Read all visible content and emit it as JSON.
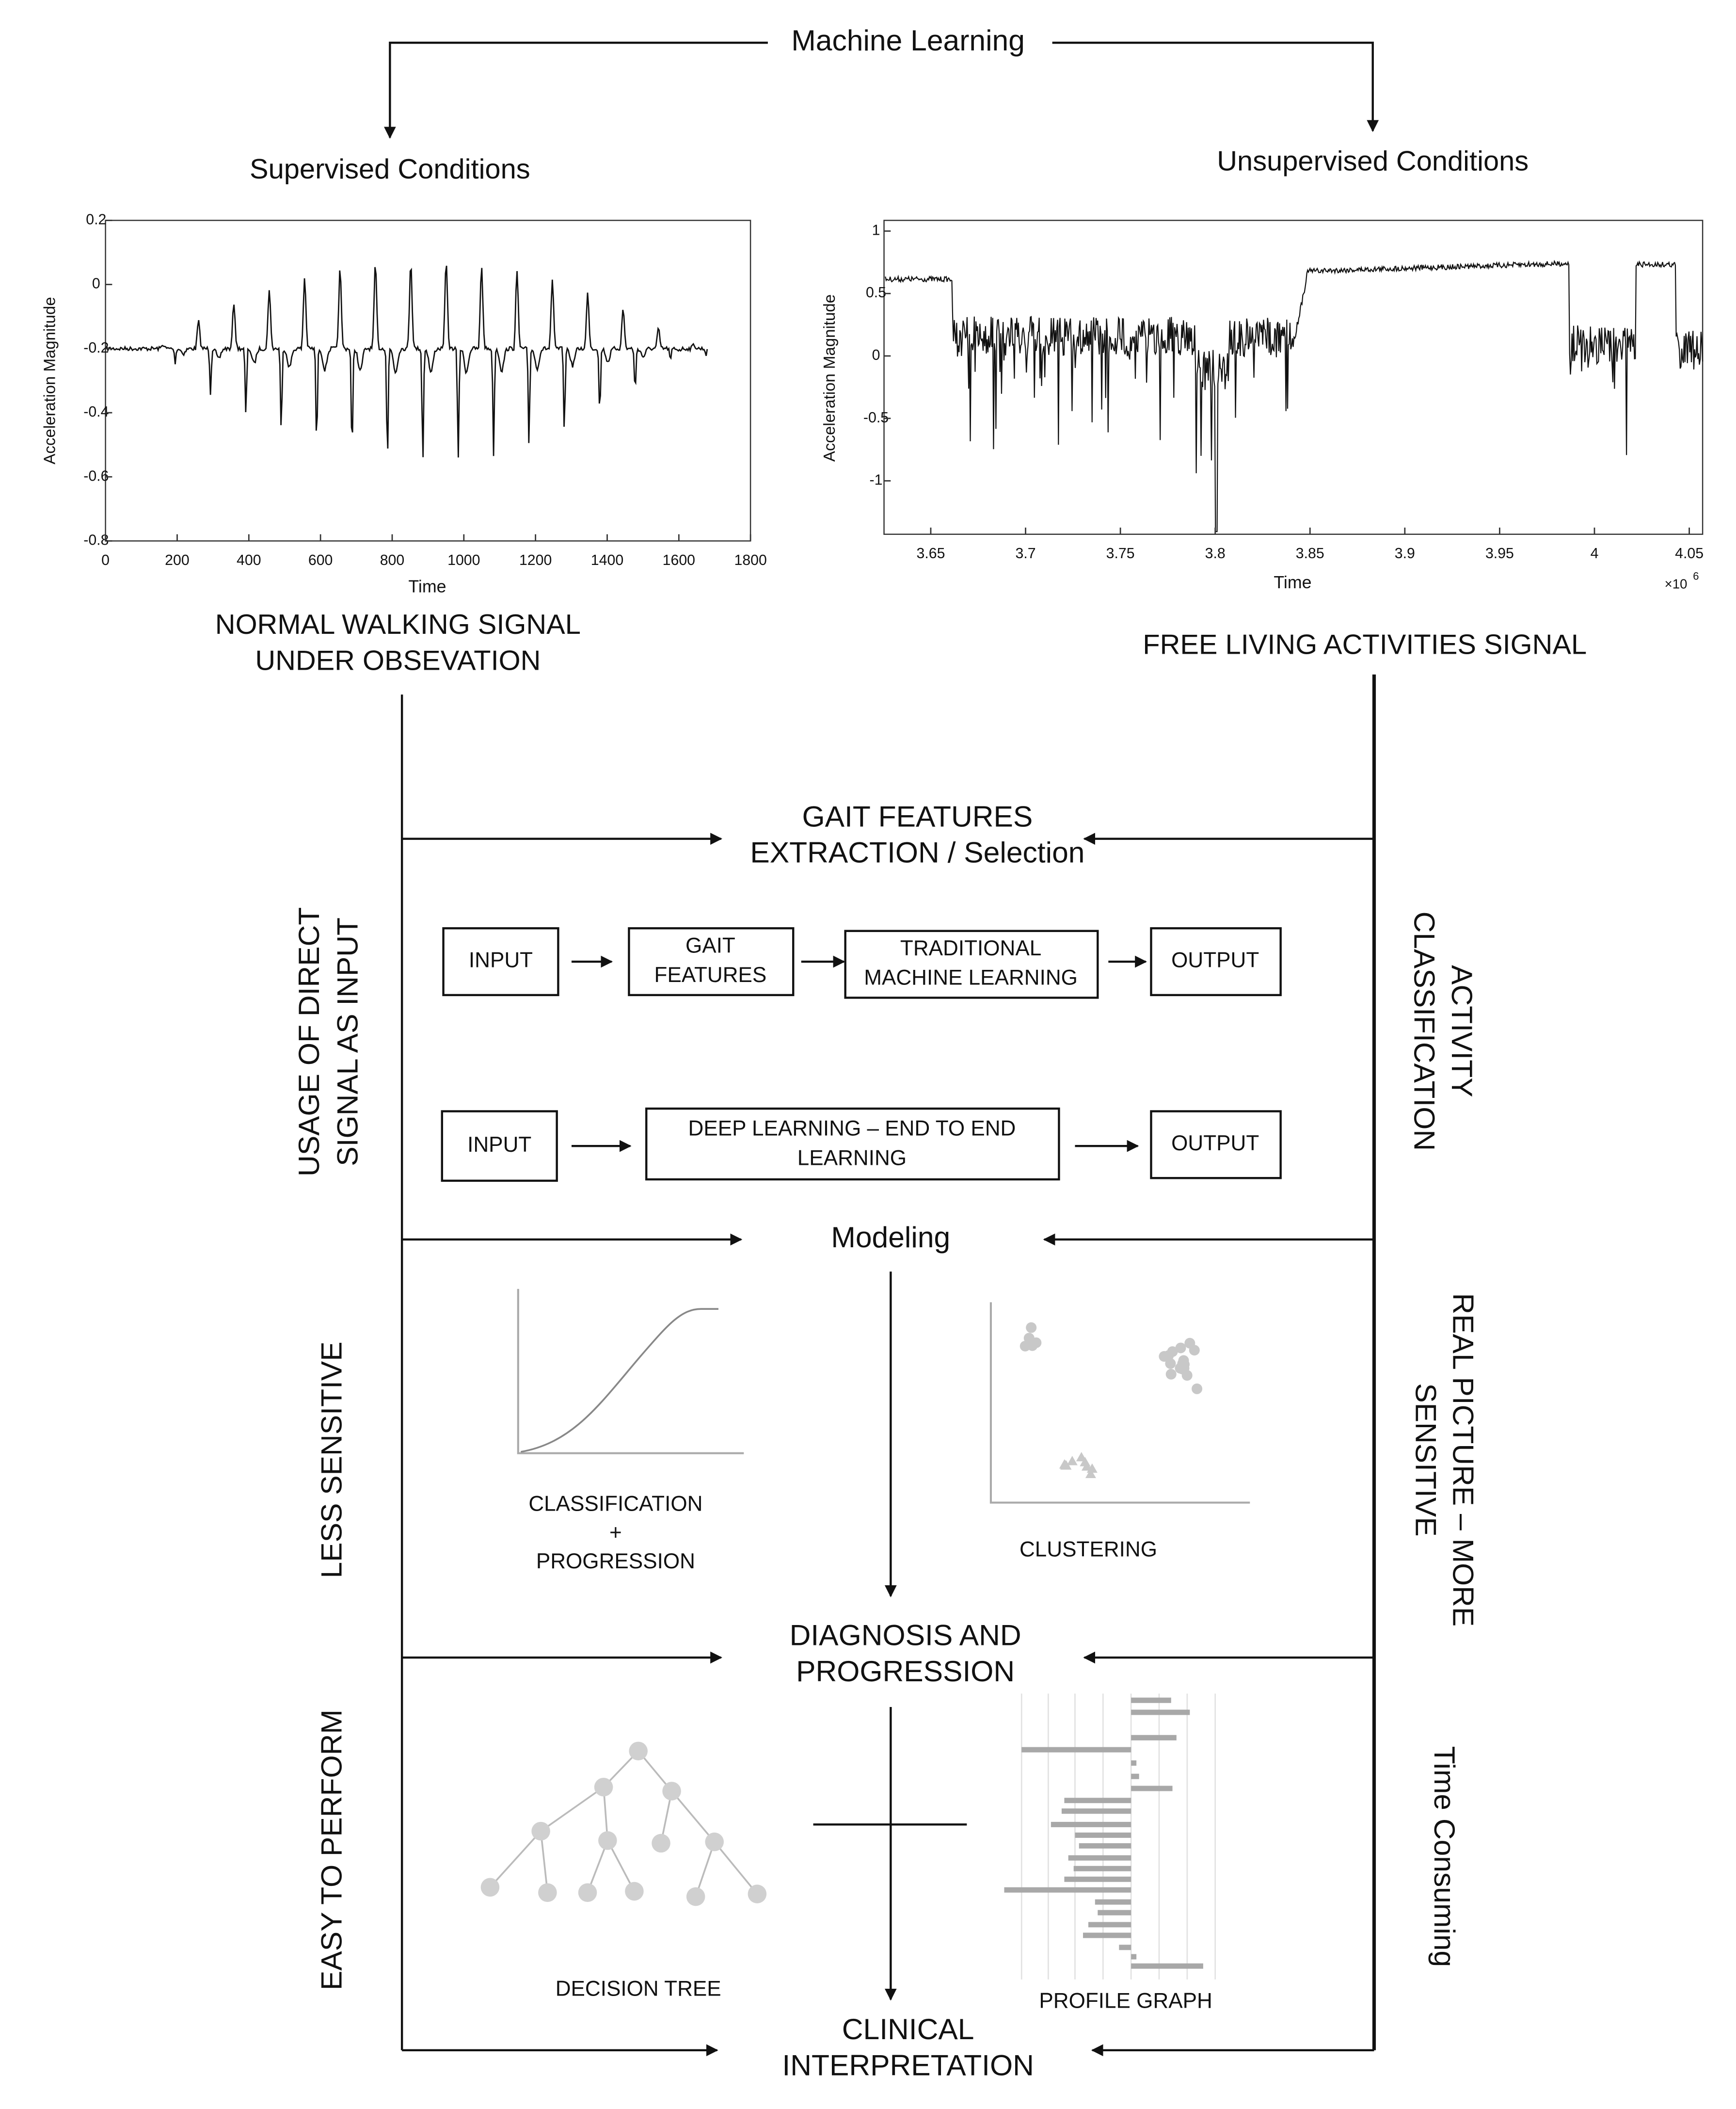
{
  "title": "Machine Learning",
  "supervised": {
    "heading": "Supervised Conditions",
    "plot": {
      "y_label": "Acceleration Magnitude",
      "x_label": "Time",
      "y_ticks": [
        "0.2",
        "0",
        "-0.2",
        "-0.4",
        "-0.6",
        "-0.8"
      ],
      "x_ticks": [
        "0",
        "200",
        "400",
        "600",
        "800",
        "1000",
        "1200",
        "1400",
        "1600",
        "1800"
      ]
    },
    "caption": [
      "NORMAL WALKING SIGNAL",
      "UNDER OBSEVATION"
    ]
  },
  "unsupervised": {
    "heading": "Unsupervised Conditions",
    "plot": {
      "y_label": "Acceleration Magnitude",
      "x_label": "Time",
      "y_ticks": [
        "1",
        "0.5",
        "0",
        "-0.5",
        "-1"
      ],
      "x_ticks": [
        "3.65",
        "3.7",
        "3.75",
        "3.8",
        "3.85",
        "3.9",
        "3.95",
        "4",
        "4.05"
      ],
      "x_multiplier": {
        "base": "×10",
        "exponent": "6"
      }
    },
    "caption": [
      "FREE LIVING ACTIVITIES SIGNAL"
    ]
  },
  "stages": {
    "features": [
      "GAIT FEATURES",
      "EXTRACTION / Selection"
    ],
    "modeling": [
      "Modeling"
    ],
    "diagnosis": [
      "DIAGNOSIS AND",
      "PROGRESSION"
    ],
    "clinical": [
      "CLINICAL",
      "INTERPRETATION"
    ]
  },
  "pipelines": [
    [
      [
        "INPUT"
      ],
      [
        "GAIT",
        "FEATURES"
      ],
      [
        "TRADITIONAL",
        "MACHINE LEARNING"
      ],
      [
        "OUTPUT"
      ]
    ],
    [
      [
        "INPUT"
      ],
      [
        "DEEP LEARNING – END TO END",
        "LEARNING"
      ],
      [
        "OUTPUT"
      ]
    ]
  ],
  "illustrations": {
    "classification": [
      "CLASSIFICATION",
      "+",
      "PROGRESSION"
    ],
    "clustering": [
      "CLUSTERING"
    ],
    "decision_tree": [
      "DECISION TREE"
    ],
    "profile_graph": [
      "PROFILE GRAPH"
    ]
  },
  "left_labels": [
    [
      "USAGE OF DIRECT",
      "SIGNAL AS INPUT"
    ],
    [
      "LESS SENSITIVE"
    ],
    [
      "EASY TO PERFORM"
    ]
  ],
  "right_labels": [
    [
      "ACTIVITY",
      "CLASSIFICATION"
    ],
    [
      "REAL PICTURE – MORE",
      "SENSITIVE"
    ],
    [
      "Time Consuming"
    ]
  ]
}
